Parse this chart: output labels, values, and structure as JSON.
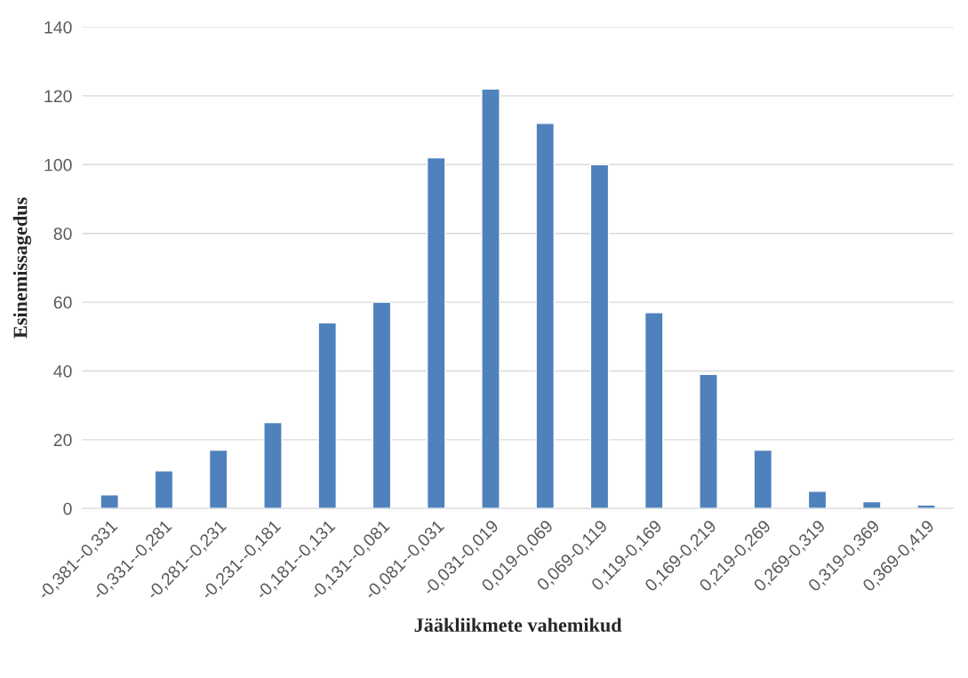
{
  "chart_data": {
    "type": "bar",
    "xlabel": "Jääkliikmete vahemikud",
    "ylabel": "Esinemissagedus",
    "categories": [
      "-0,381--0,331",
      "-0,331--0,281",
      "-0,281--0,231",
      "-0,231--0,181",
      "-0,181--0,131",
      "-0,131--0,081",
      "-0,081--0,031",
      "-0,031-0,019",
      "0,019-0,069",
      "0,069-0,119",
      "0,119-0,169",
      "0,169-0,219",
      "0,219-0,269",
      "0,269-0,319",
      "0,319-0,369",
      "0,369-0,419"
    ],
    "values": [
      4,
      11,
      17,
      25,
      54,
      60,
      102,
      122,
      112,
      100,
      57,
      39,
      17,
      5,
      2,
      1
    ],
    "color": "#4f81bd",
    "ylim": [
      0,
      140
    ],
    "yticks": [
      0,
      20,
      40,
      60,
      80,
      100,
      120,
      140
    ],
    "grid": "y",
    "legend": false
  }
}
